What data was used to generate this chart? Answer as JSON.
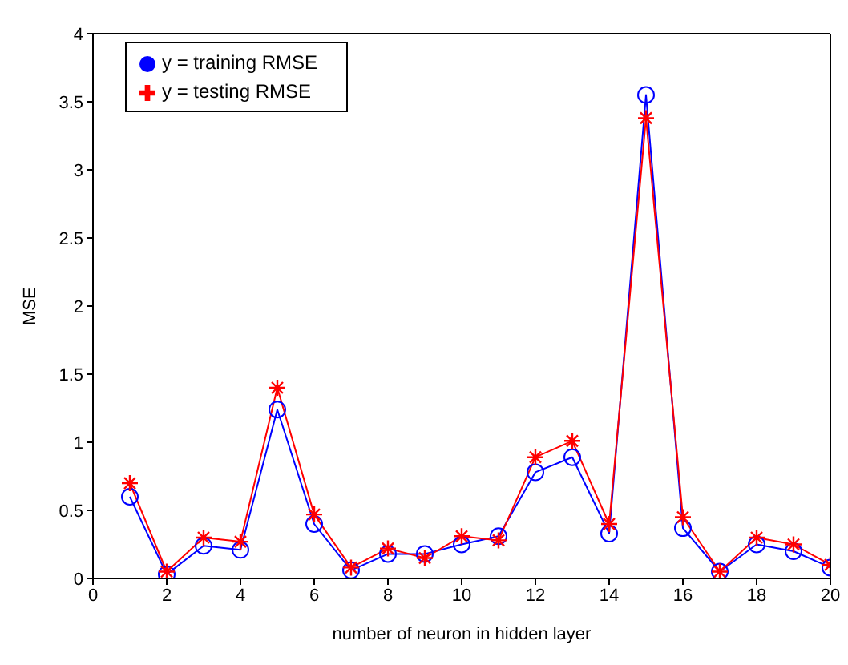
{
  "chart_data": {
    "type": "line",
    "xlabel": "number of neuron in hidden layer",
    "ylabel": "MSE",
    "x": [
      1,
      2,
      3,
      4,
      5,
      6,
      7,
      8,
      9,
      10,
      11,
      12,
      13,
      14,
      15,
      16,
      17,
      18,
      19,
      20
    ],
    "series": [
      {
        "name": "y = training RMSE",
        "color": "#0000ff",
        "marker": "circle",
        "values": [
          0.6,
          0.03,
          0.24,
          0.21,
          1.24,
          0.4,
          0.06,
          0.18,
          0.18,
          0.25,
          0.31,
          0.78,
          0.89,
          0.33,
          3.55,
          0.37,
          0.05,
          0.25,
          0.2,
          0.08
        ]
      },
      {
        "name": "y = testing RMSE",
        "color": "#ff0000",
        "marker": "cross",
        "values": [
          0.7,
          0.05,
          0.3,
          0.27,
          1.4,
          0.47,
          0.08,
          0.22,
          0.15,
          0.31,
          0.28,
          0.89,
          1.01,
          0.4,
          3.38,
          0.45,
          0.05,
          0.3,
          0.25,
          0.1
        ]
      }
    ],
    "xlim": [
      0,
      20
    ],
    "xticks": [
      0,
      2,
      4,
      6,
      8,
      10,
      12,
      14,
      16,
      18,
      20
    ],
    "ylim": [
      0,
      4
    ],
    "yticks": [
      0,
      0.5,
      1,
      1.5,
      2,
      2.5,
      3,
      3.5,
      4
    ],
    "grid": false,
    "legend": "top left",
    "line_style": "solid"
  }
}
